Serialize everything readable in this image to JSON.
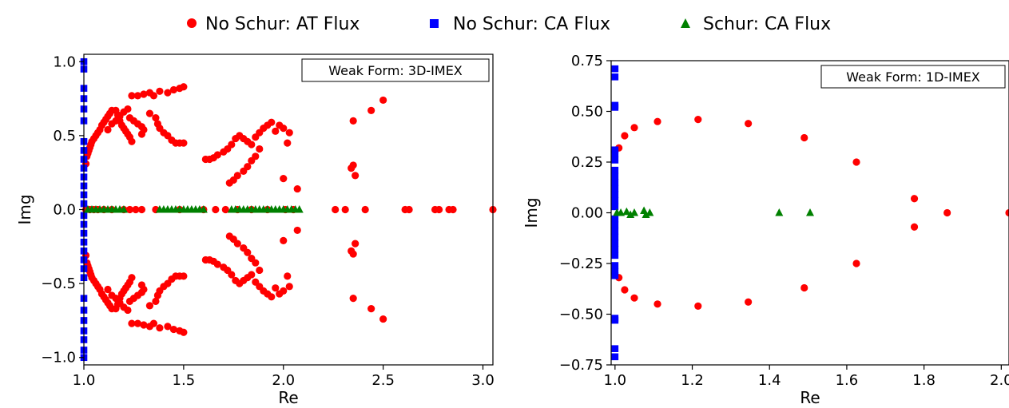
{
  "legend": {
    "items": [
      {
        "label": "No Schur: AT Flux",
        "color": "#ff0000",
        "marker": "circle"
      },
      {
        "label": "No Schur: CA Flux",
        "color": "#0000ff",
        "marker": "square"
      },
      {
        "label": "Schur: CA Flux",
        "color": "#008000",
        "marker": "triangle"
      }
    ]
  },
  "chart_data": [
    {
      "type": "scatter",
      "annotation": "Weak Form: 3D-IMEX",
      "xlabel": "Re",
      "ylabel": "Img",
      "xlim": [
        1.0,
        3.05
      ],
      "ylim": [
        -1.05,
        1.05
      ],
      "xticks": [
        1.0,
        1.5,
        2.0,
        2.5,
        3.0
      ],
      "xtick_labels": [
        "1.0",
        "1.5",
        "2.0",
        "2.5",
        "3.0"
      ],
      "yticks": [
        -1.0,
        -0.5,
        0.0,
        0.5,
        1.0
      ],
      "ytick_labels": [
        "−1.0",
        "−0.5",
        "0.0",
        "0.5",
        "1.0"
      ],
      "series": [
        {
          "name": "No Schur: AT Flux",
          "marker": "circle",
          "color": "#ff0000",
          "mirror_y": true,
          "points": [
            [
              1.01,
              0.31
            ],
            [
              1.015,
              0.36
            ],
            [
              1.02,
              0.38
            ],
            [
              1.025,
              0.4
            ],
            [
              1.03,
              0.42
            ],
            [
              1.035,
              0.44
            ],
            [
              1.04,
              0.46
            ],
            [
              1.05,
              0.48
            ],
            [
              1.06,
              0.5
            ],
            [
              1.07,
              0.52
            ],
            [
              1.08,
              0.54
            ],
            [
              1.09,
              0.57
            ],
            [
              1.1,
              0.59
            ],
            [
              1.11,
              0.61
            ],
            [
              1.12,
              0.63
            ],
            [
              1.13,
              0.65
            ],
            [
              1.14,
              0.67
            ],
            [
              1.16,
              0.67
            ],
            [
              1.17,
              0.64
            ],
            [
              1.18,
              0.6
            ],
            [
              1.19,
              0.57
            ],
            [
              1.2,
              0.55
            ],
            [
              1.21,
              0.53
            ],
            [
              1.22,
              0.51
            ],
            [
              1.23,
              0.49
            ],
            [
              1.24,
              0.46
            ],
            [
              1.12,
              0.54
            ],
            [
              1.14,
              0.58
            ],
            [
              1.16,
              0.6
            ],
            [
              1.18,
              0.63
            ],
            [
              1.2,
              0.66
            ],
            [
              1.22,
              0.68
            ],
            [
              1.23,
              0.62
            ],
            [
              1.25,
              0.6
            ],
            [
              1.27,
              0.58
            ],
            [
              1.29,
              0.56
            ],
            [
              1.3,
              0.54
            ],
            [
              1.29,
              0.51
            ],
            [
              1.24,
              0.77
            ],
            [
              1.27,
              0.77
            ],
            [
              1.3,
              0.78
            ],
            [
              1.33,
              0.79
            ],
            [
              1.35,
              0.77
            ],
            [
              1.38,
              0.8
            ],
            [
              1.42,
              0.79
            ],
            [
              1.45,
              0.81
            ],
            [
              1.48,
              0.82
            ],
            [
              1.5,
              0.83
            ],
            [
              1.36,
              0.62
            ],
            [
              1.38,
              0.55
            ],
            [
              1.4,
              0.52
            ],
            [
              1.42,
              0.5
            ],
            [
              1.44,
              0.47
            ],
            [
              1.46,
              0.45
            ],
            [
              1.48,
              0.45
            ],
            [
              1.5,
              0.45
            ],
            [
              1.37,
              0.58
            ],
            [
              1.33,
              0.65
            ],
            [
              1.61,
              0.34
            ],
            [
              1.63,
              0.34
            ],
            [
              1.65,
              0.35
            ],
            [
              1.67,
              0.37
            ],
            [
              1.7,
              0.39
            ],
            [
              1.72,
              0.41
            ],
            [
              1.74,
              0.44
            ],
            [
              1.76,
              0.48
            ],
            [
              1.78,
              0.5
            ],
            [
              1.8,
              0.48
            ],
            [
              1.82,
              0.46
            ],
            [
              1.84,
              0.44
            ],
            [
              1.86,
              0.49
            ],
            [
              1.88,
              0.52
            ],
            [
              1.9,
              0.55
            ],
            [
              1.92,
              0.57
            ],
            [
              1.73,
              0.18
            ],
            [
              1.75,
              0.2
            ],
            [
              1.77,
              0.23
            ],
            [
              1.8,
              0.26
            ],
            [
              1.82,
              0.29
            ],
            [
              1.84,
              0.33
            ],
            [
              1.86,
              0.36
            ],
            [
              1.88,
              0.41
            ],
            [
              1.94,
              0.59
            ],
            [
              1.96,
              0.53
            ],
            [
              1.98,
              0.57
            ],
            [
              2.0,
              0.55
            ],
            [
              2.02,
              0.45
            ],
            [
              2.03,
              0.52
            ],
            [
              2.0,
              0.21
            ],
            [
              2.07,
              0.14
            ],
            [
              2.35,
              0.6
            ],
            [
              2.35,
              0.3
            ],
            [
              2.36,
              0.23
            ],
            [
              2.44,
              0.67
            ],
            [
              2.5,
              0.74
            ],
            [
              2.34,
              0.28
            ],
            [
              1.01,
              0.0
            ],
            [
              1.03,
              0.0
            ],
            [
              1.05,
              0.0
            ],
            [
              1.07,
              0.0
            ],
            [
              1.1,
              0.0
            ],
            [
              1.14,
              0.0
            ],
            [
              1.2,
              0.0
            ],
            [
              1.23,
              0.0
            ],
            [
              1.26,
              0.0
            ],
            [
              1.29,
              0.0
            ],
            [
              1.36,
              0.0
            ],
            [
              1.48,
              0.0
            ],
            [
              1.6,
              0.0
            ],
            [
              1.66,
              0.0
            ],
            [
              1.71,
              0.0
            ],
            [
              1.77,
              0.0
            ],
            [
              1.84,
              0.0
            ],
            [
              1.92,
              0.0
            ],
            [
              2.01,
              0.0
            ],
            [
              2.05,
              0.0
            ],
            [
              2.26,
              0.0
            ],
            [
              2.31,
              0.0
            ],
            [
              2.41,
              0.0
            ],
            [
              2.61,
              0.0
            ],
            [
              2.63,
              0.0
            ],
            [
              2.76,
              0.0
            ],
            [
              2.78,
              0.0
            ],
            [
              2.83,
              0.0
            ],
            [
              2.85,
              0.0
            ],
            [
              3.05,
              0.0
            ]
          ]
        },
        {
          "name": "No Schur: CA Flux",
          "marker": "square",
          "color": "#0000ff",
          "points": [
            [
              1.0,
              1.0
            ],
            [
              1.0,
              0.95
            ],
            [
              1.0,
              0.82
            ],
            [
              1.0,
              0.75
            ],
            [
              1.0,
              0.68
            ],
            [
              1.0,
              0.6
            ],
            [
              1.0,
              0.46
            ],
            [
              1.0,
              0.4
            ],
            [
              1.0,
              0.34
            ],
            [
              1.0,
              0.28
            ],
            [
              1.0,
              0.22
            ],
            [
              1.0,
              0.16
            ],
            [
              1.0,
              0.1
            ],
            [
              1.0,
              0.04
            ],
            [
              1.0,
              -0.04
            ],
            [
              1.0,
              -0.1
            ],
            [
              1.0,
              -0.16
            ],
            [
              1.0,
              -0.22
            ],
            [
              1.0,
              -0.28
            ],
            [
              1.0,
              -0.34
            ],
            [
              1.0,
              -0.4
            ],
            [
              1.0,
              -0.46
            ],
            [
              1.0,
              -0.6
            ],
            [
              1.0,
              -0.68
            ],
            [
              1.0,
              -0.75
            ],
            [
              1.0,
              -0.82
            ],
            [
              1.0,
              -0.88
            ],
            [
              1.0,
              -0.95
            ],
            [
              1.0,
              -1.0
            ]
          ]
        },
        {
          "name": "Schur: CA Flux",
          "marker": "triangle",
          "color": "#008000",
          "points": [
            [
              1.02,
              0.0
            ],
            [
              1.04,
              0.0
            ],
            [
              1.06,
              0.0
            ],
            [
              1.08,
              0.0
            ],
            [
              1.1,
              0.0
            ],
            [
              1.12,
              0.0
            ],
            [
              1.14,
              0.0
            ],
            [
              1.16,
              0.0
            ],
            [
              1.18,
              0.0
            ],
            [
              1.2,
              0.0
            ],
            [
              1.38,
              0.0
            ],
            [
              1.4,
              0.0
            ],
            [
              1.42,
              0.0
            ],
            [
              1.44,
              0.0
            ],
            [
              1.46,
              0.0
            ],
            [
              1.48,
              0.0
            ],
            [
              1.5,
              0.0
            ],
            [
              1.52,
              0.0
            ],
            [
              1.54,
              0.0
            ],
            [
              1.56,
              0.0
            ],
            [
              1.58,
              0.0
            ],
            [
              1.6,
              0.0
            ],
            [
              1.74,
              0.0
            ],
            [
              1.76,
              0.0
            ],
            [
              1.78,
              0.0
            ],
            [
              1.8,
              0.0
            ],
            [
              1.82,
              0.0
            ],
            [
              1.84,
              0.0
            ],
            [
              1.86,
              0.0
            ],
            [
              1.88,
              0.0
            ],
            [
              1.9,
              0.0
            ],
            [
              1.92,
              0.0
            ],
            [
              1.94,
              0.0
            ],
            [
              1.96,
              0.0
            ],
            [
              1.98,
              0.0
            ],
            [
              2.0,
              0.0
            ],
            [
              2.02,
              0.0
            ],
            [
              2.04,
              0.0
            ],
            [
              2.06,
              0.0
            ],
            [
              2.08,
              0.0
            ]
          ]
        }
      ]
    },
    {
      "type": "scatter",
      "annotation": "Weak Form: 1D-IMEX",
      "xlabel": "Re",
      "ylabel": "Img",
      "xlim": [
        0.99,
        2.02
      ],
      "ylim": [
        -0.75,
        0.75
      ],
      "xticks": [
        1.0,
        1.2,
        1.4,
        1.6,
        1.8,
        2.0
      ],
      "xtick_labels": [
        "1.0",
        "1.2",
        "1.4",
        "1.6",
        "1.8",
        "2.0"
      ],
      "yticks": [
        -0.75,
        -0.5,
        -0.25,
        0.0,
        0.25,
        0.5,
        0.75
      ],
      "ytick_labels": [
        "−0.75",
        "−0.50",
        "−0.25",
        "0.00",
        "0.25",
        "0.50",
        "0.75"
      ],
      "series": [
        {
          "name": "No Schur: AT Flux",
          "marker": "circle",
          "color": "#ff0000",
          "mirror_y": true,
          "points": [
            [
              1.01,
              0.32
            ],
            [
              1.025,
              0.38
            ],
            [
              1.05,
              0.42
            ],
            [
              1.11,
              0.45
            ],
            [
              1.215,
              0.46
            ],
            [
              1.345,
              0.44
            ],
            [
              1.49,
              0.37
            ],
            [
              1.625,
              0.25
            ],
            [
              1.775,
              0.07
            ],
            [
              1.86,
              0.0
            ],
            [
              2.02,
              0.0
            ]
          ]
        },
        {
          "name": "No Schur: CA Flux",
          "marker": "square",
          "color": "#0000ff",
          "points": [
            [
              1.0,
              0.71
            ],
            [
              1.0,
              0.67
            ],
            [
              1.0,
              0.53
            ],
            [
              1.0,
              0.52
            ],
            [
              1.0,
              0.31
            ],
            [
              1.0,
              0.29
            ],
            [
              1.0,
              0.26
            ],
            [
              1.0,
              0.21
            ],
            [
              1.0,
              0.18
            ],
            [
              1.0,
              0.15
            ],
            [
              1.0,
              0.12
            ],
            [
              1.0,
              0.09
            ],
            [
              1.0,
              0.06
            ],
            [
              1.0,
              0.03
            ],
            [
              1.0,
              -0.03
            ],
            [
              1.0,
              -0.06
            ],
            [
              1.0,
              -0.09
            ],
            [
              1.0,
              -0.12
            ],
            [
              1.0,
              -0.15
            ],
            [
              1.0,
              -0.18
            ],
            [
              1.0,
              -0.21
            ],
            [
              1.0,
              -0.26
            ],
            [
              1.0,
              -0.29
            ],
            [
              1.0,
              -0.31
            ],
            [
              1.0,
              -0.52
            ],
            [
              1.0,
              -0.53
            ],
            [
              1.0,
              -0.67
            ],
            [
              1.0,
              -0.71
            ]
          ]
        },
        {
          "name": "Schur: CA Flux",
          "marker": "triangle",
          "color": "#008000",
          "points": [
            [
              1.005,
              0.0
            ],
            [
              1.015,
              0.0
            ],
            [
              1.03,
              0.005
            ],
            [
              1.04,
              -0.01
            ],
            [
              1.05,
              0.0
            ],
            [
              1.075,
              0.01
            ],
            [
              1.08,
              -0.01
            ],
            [
              1.09,
              0.0
            ],
            [
              1.425,
              0.0
            ],
            [
              1.505,
              0.0
            ]
          ]
        }
      ]
    }
  ]
}
